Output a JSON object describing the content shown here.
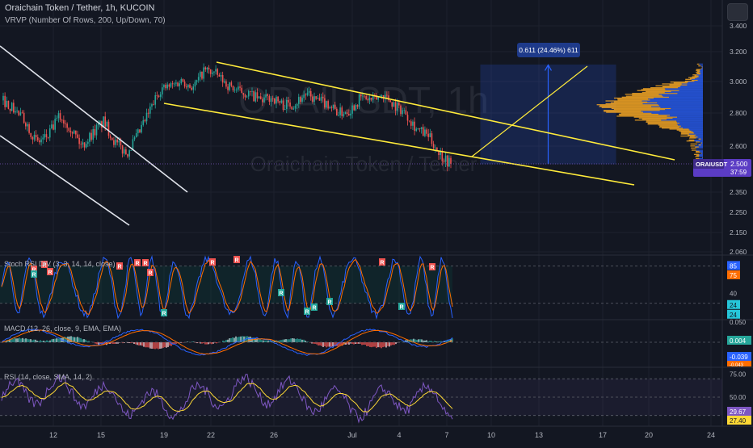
{
  "header": {
    "title": "Oraichain Token / Tether, 1h, KUCOIN",
    "vrvp": "VRVP (Number Of Rows, 200, Up/Down, 70)"
  },
  "watermark": {
    "symbol": "ORAIUSDT, 1h",
    "name": "Oraichain Token / Tether"
  },
  "measure_label": "0.611 (24.46%) 611",
  "price_tag": {
    "symbol": "ORAIUSDT",
    "price": "2.500",
    "countdown": "37:59"
  },
  "colors": {
    "bg": "#131722",
    "grid": "#1e222d",
    "up": "#26a69a",
    "down": "#ef5350",
    "trend": "#ffeb3b",
    "white_line": "#e0e3eb",
    "vp_up": "#2962ff",
    "vp_down": "#f5a623",
    "stoch_k": "#2962ff",
    "stoch_d": "#ff6d00",
    "rsi": "#7e57c2",
    "rsi_sma": "#fdd835"
  },
  "chart_data": [
    {
      "type": "candlestick",
      "title": "Oraichain Token / Tether, 1h, KUCOIN",
      "x_ticks": [
        "12",
        "15",
        "19",
        "22",
        "26",
        "Jul",
        "4",
        "7",
        "10",
        "13",
        "17",
        "20",
        "24"
      ],
      "y_ticks": [
        3.4,
        3.2,
        3.0,
        2.8,
        2.6,
        2.35,
        2.25,
        2.15,
        2.06
      ],
      "ylim": [
        2.02,
        3.5
      ],
      "last_price": 2.5,
      "price_path": [
        2.88,
        2.82,
        2.75,
        2.62,
        2.66,
        2.78,
        2.72,
        2.6,
        2.68,
        2.75,
        2.62,
        2.56,
        2.66,
        2.8,
        2.95,
        2.97,
        3.01,
        2.96,
        3.08,
        3.05,
        2.98,
        2.94,
        2.92,
        2.88,
        2.9,
        2.85,
        2.86,
        2.92,
        2.88,
        2.86,
        2.8,
        2.82,
        2.9,
        2.88,
        2.92,
        2.85,
        2.8,
        2.7,
        2.66,
        2.56,
        2.5
      ],
      "drawings": {
        "channel_upper": [
          [
            1,
            2.93
          ],
          [
            17,
            2.79
          ]
        ],
        "channel_lower": [
          [
            -2,
            2.83
          ],
          [
            17.4,
            2.42
          ]
        ],
        "white_upper": [
          [
            -5,
            3.25
          ],
          [
            11,
            2.35
          ]
        ],
        "white_lower": [
          [
            -5,
            2.7
          ],
          [
            14,
            2.08
          ]
        ]
      },
      "measure": {
        "label": "0.611 (24.46%) 611",
        "from": 2.5,
        "to": 3.111
      },
      "volume_profile": "up/down volume by price (blue up, orange down), point of control near 2.85"
    },
    {
      "type": "line",
      "title": "Stoch RSI DIV 3, 3, 14, 14, close",
      "series": [
        {
          "name": "K"
        },
        {
          "name": "D"
        }
      ],
      "levels": [
        85,
        75,
        40,
        24,
        24
      ],
      "last_values": {
        "k": 85,
        "d": 75
      },
      "signals": [
        "R",
        "R",
        "R",
        "R",
        "R",
        "R",
        "R",
        "R",
        "R",
        "R",
        "R",
        "R",
        "R",
        "R",
        "R",
        "R"
      ]
    },
    {
      "type": "bar",
      "title": "MACD 12, 26, close, 9, EMA, EMA",
      "levels": [
        0.05
      ],
      "last_values": {
        "histogram": 0.004,
        "macd": -0.039,
        "signal": -0.043
      }
    },
    {
      "type": "line",
      "title": "RSI 14, close, SMA, 14, 2",
      "levels": [
        75.0,
        50.0,
        29.67,
        27.4
      ],
      "last_values": {
        "rsi": 29.67,
        "sma": 27.4
      }
    }
  ],
  "labels": {
    "stoch": "Stoch RSI DIV (3, 3, 14, 14, close)",
    "macd": "MACD (12, 26, close, 9, EMA, EMA)",
    "rsi": "RSI (14, close, SMA, 14, 2)",
    "stoch_axis": [
      "85",
      "75",
      "40",
      "24",
      "24"
    ],
    "macd_axis": [
      "0.050",
      "0.004",
      "-0.039",
      "-0.043"
    ],
    "rsi_axis": [
      "75.00",
      "50.00",
      "29.67",
      "27.40"
    ]
  }
}
